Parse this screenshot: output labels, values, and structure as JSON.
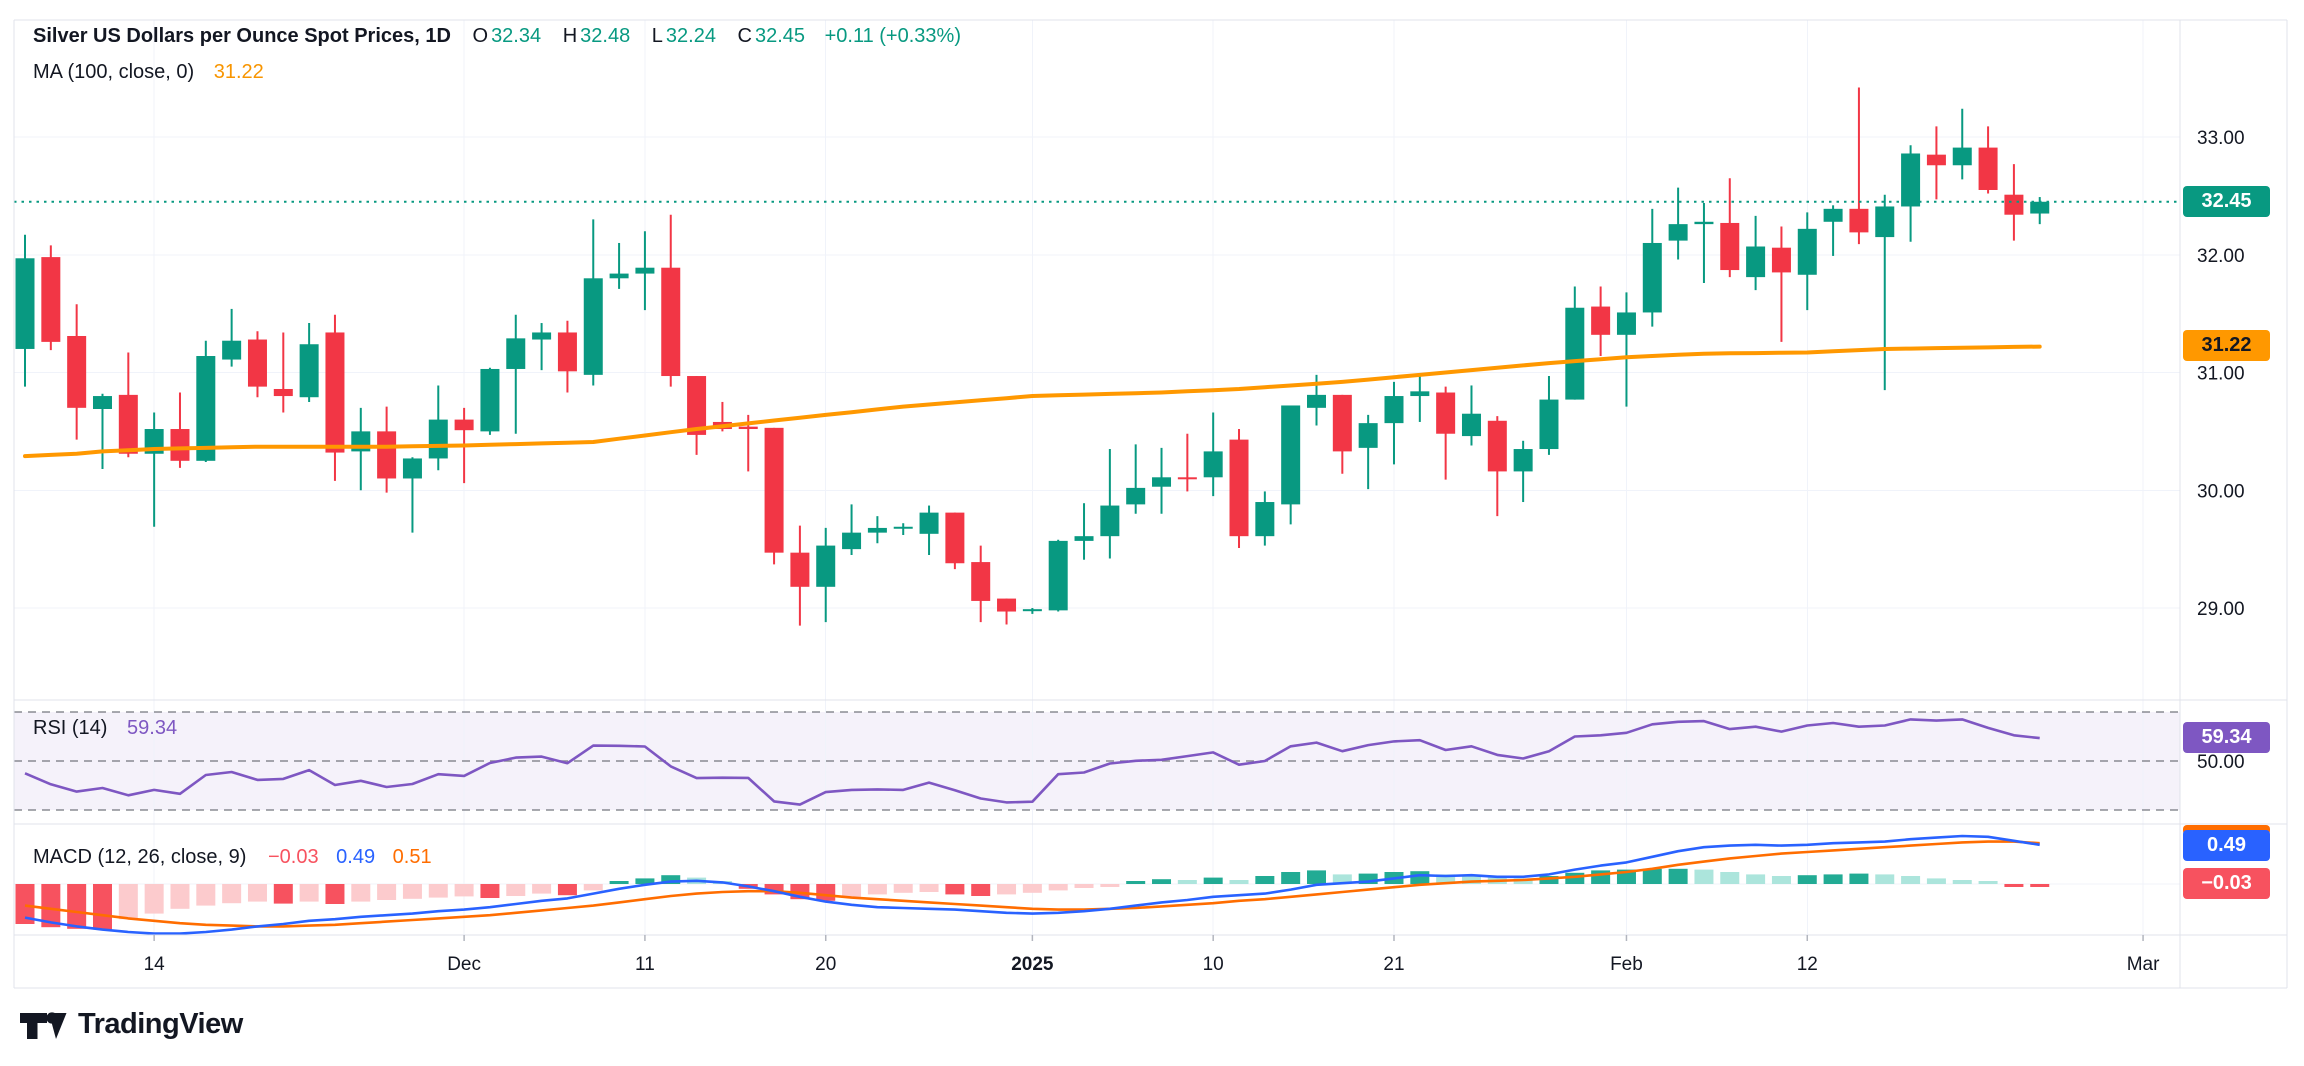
{
  "header": {
    "title": "Silver US Dollars per Ounce Spot Prices, 1D",
    "o_label": "O",
    "o": "32.34",
    "h_label": "H",
    "h": "32.48",
    "l_label": "L",
    "l": "32.24",
    "c_label": "C",
    "c": "32.45",
    "change": "+0.11 (+0.33%)",
    "ma_label": "MA (100, close, 0)",
    "ma_value": "31.22"
  },
  "rsi_panel": {
    "label": "RSI (14)",
    "value": "59.34"
  },
  "macd_panel": {
    "label": "MACD (12, 26, close, 9)",
    "hist_value": "−0.03",
    "macd_value": "0.49",
    "signal_value": "0.51"
  },
  "badges": {
    "close": "32.45",
    "ma": "31.22",
    "rsi": "59.34",
    "macd_line": "0.49",
    "macd_hist": "−0.03"
  },
  "watermark": {
    "text": "TradingView"
  },
  "colors": {
    "up": "#089981",
    "down": "#F23645",
    "ma": "#FF9800",
    "rsi": "#7E57C2",
    "rsi_band_fill": "#7E57C2",
    "macd_line": "#2962FF",
    "signal_line": "#FF6D00",
    "hist_up": "#22AB94",
    "hist_up_fade": "#ACE5DC",
    "hist_down": "#F7525F",
    "hist_down_fade": "#FCCBCD",
    "grid": "#F0F3FA",
    "border": "#E0E3EB",
    "text": "#131722",
    "dashed_level": "#656870",
    "tick": "#B2B5BE"
  },
  "chart_data": {
    "type": "candlestick",
    "title": "Silver US Dollars per Ounce Spot Prices",
    "interval": "1D",
    "last": {
      "open": 32.34,
      "high": 32.48,
      "low": 32.24,
      "close": 32.45,
      "change_abs": "+0.11",
      "change_pct": "+0.33%"
    },
    "price_axis": {
      "ylim": [
        28.55,
        33.6
      ],
      "labels": [
        {
          "text": "33.00",
          "value": 33.0
        },
        {
          "text": "32.00",
          "value": 32.0
        },
        {
          "text": "31.00",
          "value": 31.0
        },
        {
          "text": "30.00",
          "value": 30.0
        },
        {
          "text": "29.00",
          "value": 29.0
        }
      ],
      "close_line_value": 32.45,
      "ma_badge_value": 31.22
    },
    "time_axis": {
      "labels": [
        {
          "text": "14",
          "index": 5,
          "bold": false
        },
        {
          "text": "Dec",
          "index": 17,
          "bold": false
        },
        {
          "text": "11",
          "index": 24,
          "bold": false
        },
        {
          "text": "20",
          "index": 31,
          "bold": false
        },
        {
          "text": "2025",
          "index": 39,
          "bold": true
        },
        {
          "text": "10",
          "index": 46,
          "bold": false
        },
        {
          "text": "21",
          "index": 53,
          "bold": false
        },
        {
          "text": "Feb",
          "index": 62,
          "bold": false
        },
        {
          "text": "12",
          "index": 69,
          "bold": false
        },
        {
          "text": "Mar",
          "index": 82,
          "bold": false
        }
      ]
    },
    "candles": [
      [
        31.2,
        32.17,
        30.88,
        31.97
      ],
      [
        31.98,
        32.08,
        31.19,
        31.26
      ],
      [
        31.31,
        31.58,
        30.43,
        30.7
      ],
      [
        30.69,
        30.82,
        30.18,
        30.8
      ],
      [
        30.81,
        31.17,
        30.28,
        30.31
      ],
      [
        30.31,
        30.66,
        29.69,
        30.52
      ],
      [
        30.52,
        30.83,
        30.19,
        30.25
      ],
      [
        30.25,
        31.27,
        30.24,
        31.14
      ],
      [
        31.11,
        31.54,
        31.05,
        31.27
      ],
      [
        31.28,
        31.35,
        30.79,
        30.88
      ],
      [
        30.86,
        31.34,
        30.66,
        30.8
      ],
      [
        30.79,
        31.42,
        30.75,
        31.24
      ],
      [
        31.34,
        31.49,
        30.08,
        30.32
      ],
      [
        30.33,
        30.7,
        30.0,
        30.5
      ],
      [
        30.5,
        30.71,
        29.98,
        30.1
      ],
      [
        30.1,
        30.28,
        29.64,
        30.27
      ],
      [
        30.27,
        30.89,
        30.17,
        30.6
      ],
      [
        30.6,
        30.7,
        30.06,
        30.51
      ],
      [
        30.5,
        31.04,
        30.47,
        31.03
      ],
      [
        31.03,
        31.49,
        30.48,
        31.29
      ],
      [
        31.28,
        31.42,
        31.02,
        31.34
      ],
      [
        31.34,
        31.44,
        30.83,
        31.01
      ],
      [
        30.98,
        32.3,
        30.89,
        31.8
      ],
      [
        31.8,
        32.1,
        31.71,
        31.84
      ],
      [
        31.84,
        32.2,
        31.53,
        31.89
      ],
      [
        31.89,
        32.34,
        30.88,
        30.97
      ],
      [
        30.97,
        30.97,
        30.3,
        30.47
      ],
      [
        30.58,
        30.75,
        30.5,
        30.52
      ],
      [
        30.54,
        30.64,
        30.16,
        30.52
      ],
      [
        30.53,
        30.53,
        29.37,
        29.47
      ],
      [
        29.47,
        29.7,
        28.85,
        29.18
      ],
      [
        29.18,
        29.68,
        28.88,
        29.53
      ],
      [
        29.5,
        29.88,
        29.45,
        29.64
      ],
      [
        29.64,
        29.78,
        29.55,
        29.68
      ],
      [
        29.68,
        29.72,
        29.62,
        29.69
      ],
      [
        29.63,
        29.87,
        29.45,
        29.81
      ],
      [
        29.81,
        29.81,
        29.33,
        29.38
      ],
      [
        29.39,
        29.53,
        28.88,
        29.06
      ],
      [
        29.08,
        29.08,
        28.86,
        28.97
      ],
      [
        28.98,
        29.0,
        28.95,
        28.99
      ],
      [
        28.98,
        29.58,
        28.97,
        29.57
      ],
      [
        29.57,
        29.89,
        29.41,
        29.61
      ],
      [
        29.61,
        30.35,
        29.42,
        29.87
      ],
      [
        29.88,
        30.39,
        29.8,
        30.02
      ],
      [
        30.03,
        30.36,
        29.8,
        30.11
      ],
      [
        30.11,
        30.48,
        29.99,
        30.1
      ],
      [
        30.11,
        30.66,
        29.95,
        30.33
      ],
      [
        30.43,
        30.52,
        29.51,
        29.61
      ],
      [
        29.61,
        29.99,
        29.53,
        29.9
      ],
      [
        29.88,
        30.72,
        29.71,
        30.72
      ],
      [
        30.7,
        30.98,
        30.55,
        30.81
      ],
      [
        30.81,
        30.81,
        30.14,
        30.33
      ],
      [
        30.36,
        30.64,
        30.01,
        30.57
      ],
      [
        30.57,
        30.92,
        30.22,
        30.8
      ],
      [
        30.8,
        30.97,
        30.58,
        30.84
      ],
      [
        30.83,
        30.88,
        30.09,
        30.48
      ],
      [
        30.46,
        30.89,
        30.38,
        30.65
      ],
      [
        30.59,
        30.63,
        29.78,
        30.16
      ],
      [
        30.16,
        30.42,
        29.9,
        30.35
      ],
      [
        30.35,
        30.97,
        30.3,
        30.77
      ],
      [
        30.77,
        31.73,
        30.77,
        31.55
      ],
      [
        31.56,
        31.73,
        31.14,
        31.32
      ],
      [
        31.32,
        31.68,
        30.71,
        31.51
      ],
      [
        31.51,
        32.39,
        31.39,
        32.1
      ],
      [
        32.12,
        32.57,
        31.96,
        32.26
      ],
      [
        32.26,
        32.44,
        31.76,
        32.28
      ],
      [
        32.27,
        32.65,
        31.81,
        31.87
      ],
      [
        31.81,
        32.33,
        31.7,
        32.07
      ],
      [
        32.06,
        32.24,
        31.26,
        31.85
      ],
      [
        31.83,
        32.36,
        31.53,
        32.22
      ],
      [
        32.28,
        32.42,
        31.99,
        32.39
      ],
      [
        32.39,
        33.42,
        32.09,
        32.19
      ],
      [
        32.15,
        32.51,
        30.85,
        32.41
      ],
      [
        32.41,
        32.93,
        32.11,
        32.86
      ],
      [
        32.85,
        33.09,
        32.47,
        32.76
      ],
      [
        32.76,
        33.24,
        32.64,
        32.91
      ],
      [
        32.91,
        33.09,
        32.52,
        32.55
      ],
      [
        32.51,
        32.77,
        32.12,
        32.34
      ],
      [
        32.35,
        32.49,
        32.26,
        32.45
      ]
    ],
    "ma100": {
      "label": "MA (100, close, 0)",
      "last": 31.22,
      "values": [
        30.29,
        30.3,
        30.31,
        30.33,
        30.34,
        30.35,
        30.355,
        30.36,
        30.365,
        30.37,
        30.37,
        30.37,
        30.37,
        30.37,
        30.37,
        30.373,
        30.377,
        30.38,
        30.386,
        30.392,
        30.398,
        30.404,
        30.41,
        30.438,
        30.465,
        30.493,
        30.52,
        30.544,
        30.568,
        30.592,
        30.616,
        30.64,
        30.663,
        30.687,
        30.71,
        30.728,
        30.746,
        30.764,
        30.782,
        30.8,
        30.806,
        30.812,
        30.818,
        30.824,
        30.83,
        30.84,
        30.85,
        30.86,
        30.875,
        30.89,
        30.905,
        30.92,
        30.94,
        30.96,
        30.98,
        31.0,
        31.02,
        31.04,
        31.06,
        31.08,
        31.097,
        31.113,
        31.13,
        31.14,
        31.15,
        31.16,
        31.163,
        31.165,
        31.168,
        31.17,
        31.18,
        31.19,
        31.2,
        31.203,
        31.207,
        31.21,
        31.213,
        31.217,
        31.22
      ]
    },
    "rsi": {
      "label": "RSI (14)",
      "last": 59.34,
      "levels": [
        70,
        50,
        30
      ],
      "axis_label": {
        "text": "50.00",
        "value": 50
      },
      "values": [
        45.0,
        40.5,
        37.5,
        39.0,
        36.0,
        38.2,
        36.6,
        44.3,
        45.5,
        42.3,
        42.7,
        46.3,
        40.2,
        41.9,
        39.4,
        40.6,
        44.6,
        43.9,
        49.2,
        51.4,
        51.8,
        49.1,
        56.3,
        56.2,
        55.9,
        47.8,
        43.0,
        43.2,
        43.1,
        33.5,
        32.2,
        37.3,
        38.2,
        38.4,
        38.2,
        41.2,
        38.1,
        34.7,
        33.1,
        33.4,
        44.6,
        45.3,
        49.0,
        50.1,
        50.5,
        52.0,
        53.5,
        48.5,
        50.0,
        56.0,
        57.5,
        54.0,
        56.5,
        58.0,
        58.5,
        54.5,
        56.0,
        52.5,
        51.0,
        54.0,
        60.0,
        60.5,
        61.5,
        65.0,
        66.0,
        66.3,
        63.0,
        64.0,
        62.0,
        64.5,
        65.5,
        64.0,
        64.5,
        67.0,
        66.5,
        67.0,
        63.5,
        60.5,
        59.34
      ]
    },
    "macd": {
      "label": "MACD (12, 26, close, 9)",
      "macd_last": 0.49,
      "signal_last": 0.51,
      "hist_last": -0.03,
      "macd": [
        -0.42,
        -0.48,
        -0.53,
        -0.57,
        -0.6,
        -0.62,
        -0.62,
        -0.6,
        -0.57,
        -0.53,
        -0.5,
        -0.46,
        -0.44,
        -0.41,
        -0.39,
        -0.37,
        -0.34,
        -0.32,
        -0.29,
        -0.25,
        -0.21,
        -0.18,
        -0.12,
        -0.06,
        -0.01,
        0.03,
        0.04,
        0.02,
        -0.03,
        -0.09,
        -0.16,
        -0.22,
        -0.26,
        -0.29,
        -0.3,
        -0.31,
        -0.32,
        -0.34,
        -0.36,
        -0.37,
        -0.36,
        -0.34,
        -0.31,
        -0.27,
        -0.23,
        -0.2,
        -0.16,
        -0.14,
        -0.12,
        -0.07,
        -0.01,
        0.01,
        0.03,
        0.07,
        0.11,
        0.1,
        0.11,
        0.09,
        0.09,
        0.12,
        0.18,
        0.23,
        0.27,
        0.34,
        0.41,
        0.46,
        0.48,
        0.49,
        0.48,
        0.49,
        0.51,
        0.52,
        0.53,
        0.56,
        0.58,
        0.6,
        0.59,
        0.54,
        0.49
      ],
      "signal": [
        -0.27,
        -0.31,
        -0.35,
        -0.39,
        -0.43,
        -0.46,
        -0.49,
        -0.51,
        -0.52,
        -0.53,
        -0.53,
        -0.52,
        -0.51,
        -0.49,
        -0.47,
        -0.45,
        -0.43,
        -0.41,
        -0.39,
        -0.36,
        -0.33,
        -0.3,
        -0.27,
        -0.23,
        -0.19,
        -0.15,
        -0.12,
        -0.1,
        -0.09,
        -0.09,
        -0.11,
        -0.14,
        -0.17,
        -0.19,
        -0.21,
        -0.23,
        -0.25,
        -0.27,
        -0.29,
        -0.31,
        -0.32,
        -0.32,
        -0.31,
        -0.3,
        -0.28,
        -0.26,
        -0.24,
        -0.21,
        -0.19,
        -0.16,
        -0.13,
        -0.1,
        -0.07,
        -0.04,
        -0.01,
        0.01,
        0.03,
        0.04,
        0.05,
        0.07,
        0.09,
        0.12,
        0.15,
        0.19,
        0.24,
        0.28,
        0.32,
        0.35,
        0.38,
        0.4,
        0.42,
        0.44,
        0.46,
        0.48,
        0.5,
        0.52,
        0.53,
        0.53,
        0.51
      ],
      "hist": [
        -0.5,
        -0.54,
        -0.56,
        -0.57,
        -0.44,
        -0.37,
        -0.31,
        -0.27,
        -0.24,
        -0.22,
        -0.245,
        -0.22,
        -0.25,
        -0.22,
        -0.2,
        -0.185,
        -0.17,
        -0.155,
        -0.175,
        -0.15,
        -0.12,
        -0.14,
        -0.08,
        0.02,
        0.07,
        0.11,
        0.08,
        0.03,
        -0.06,
        -0.13,
        -0.19,
        -0.21,
        -0.16,
        -0.13,
        -0.11,
        -0.1,
        -0.13,
        -0.15,
        -0.13,
        -0.11,
        -0.08,
        -0.05,
        -0.02,
        0.03,
        0.06,
        0.05,
        0.08,
        0.05,
        0.1,
        0.15,
        0.17,
        0.12,
        0.13,
        0.15,
        0.16,
        0.12,
        0.11,
        0.08,
        0.07,
        0.1,
        0.14,
        0.17,
        0.18,
        0.19,
        0.19,
        0.18,
        0.15,
        0.12,
        0.1,
        0.11,
        0.12,
        0.13,
        0.12,
        0.1,
        0.07,
        0.05,
        0.03,
        -0.01,
        -0.03
      ]
    }
  }
}
